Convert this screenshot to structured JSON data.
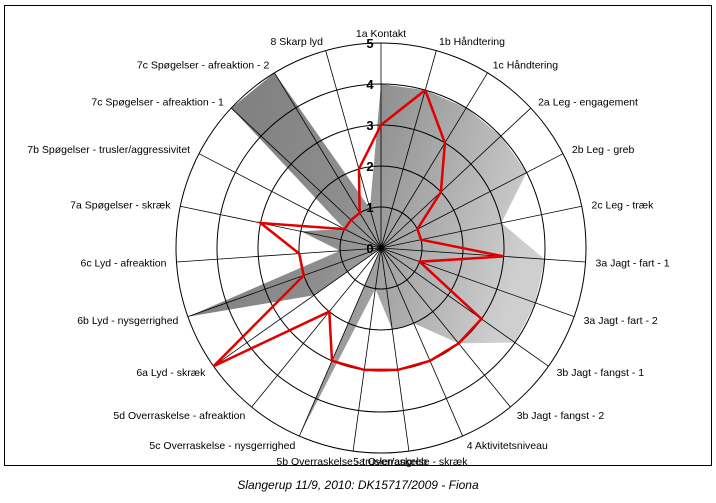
{
  "caption": "Slangerup 11/9, 2010: DK15717/2009 - Fiona",
  "chart_data": {
    "type": "radar",
    "r_range": [
      0,
      5
    ],
    "r_ticks": [
      "0",
      "1",
      "2",
      "3",
      "4",
      "5"
    ],
    "grid": true,
    "categories": [
      "1a Kontakt",
      "1b Håndtering",
      "1c Håndtering",
      "2a Leg - engagement",
      "2b Leg - greb",
      "2c Leg - træk",
      "3a Jagt - fart - 1",
      "3a Jagt - fart - 2",
      "3b Jagt - fangst - 1",
      "3b Jagt - fangst - 2",
      "4 Aktivitetsniveau",
      "5a Overraskelse - skræk",
      "5b Overraskelse - trusler/angreb",
      "5c Overraskelse - nysgerrighed",
      "5d Overraskelse - afreaktion",
      "6a Lyd - skræk",
      "6b Lyd - nysgerrighed",
      "6c Lyd - afreaktion",
      "7a Spøgelser - skræk",
      "7b Spøgelser - trusler/aggressivitet",
      "7c Spøgelser - afreaktion - 1",
      "7c Spøgelser - afreaktion - 2",
      "8 Skarp lyd"
    ],
    "series": [
      {
        "style": "area",
        "color": "#9a9a9a",
        "values": [
          4,
          4,
          4,
          4,
          4,
          3,
          4,
          4,
          4,
          3,
          2,
          2,
          1,
          5,
          0,
          2,
          5,
          1,
          2,
          1,
          5,
          5,
          1
        ]
      },
      {
        "style": "line",
        "color": "#e00000",
        "values": [
          3,
          4,
          3,
          2,
          1,
          1,
          3,
          1,
          3,
          3,
          3,
          3,
          3,
          3,
          2,
          5,
          2,
          2,
          3,
          1,
          1,
          1,
          2
        ]
      }
    ]
  }
}
